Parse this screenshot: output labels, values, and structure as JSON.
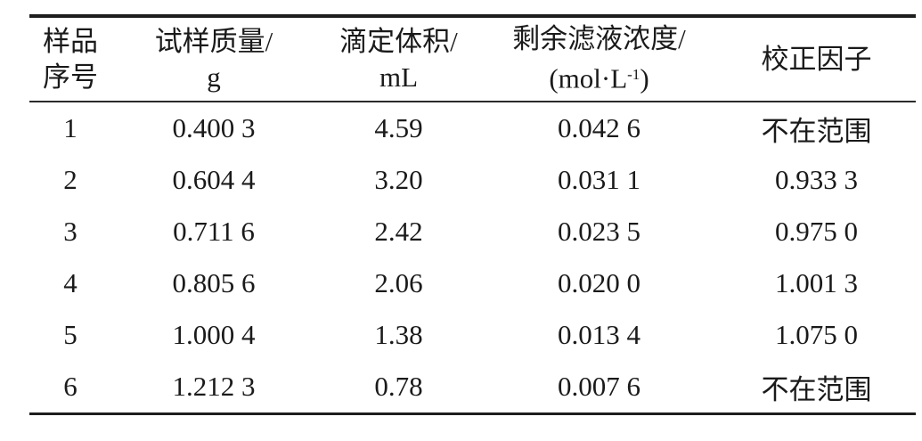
{
  "table": {
    "headers": [
      {
        "line1": "样品",
        "line2": "序号"
      },
      {
        "line1": "试样质量/",
        "line2": "g"
      },
      {
        "line1": "滴定体积/",
        "line2": "mL"
      },
      {
        "line1": "剩余滤液浓度/",
        "line2_pre": "(mol·L",
        "line2_sup": "-1",
        "line2_post": ")"
      },
      {
        "line1": "校正因子"
      }
    ],
    "rows": [
      [
        "1",
        "0.400 3",
        "4.59",
        "0.042 6",
        "不在范围"
      ],
      [
        "2",
        "0.604 4",
        "3.20",
        "0.031 1",
        "0.933 3"
      ],
      [
        "3",
        "0.711 6",
        "2.42",
        "0.023 5",
        "0.975 0"
      ],
      [
        "4",
        "0.805 6",
        "2.06",
        "0.020 0",
        "1.001 3"
      ],
      [
        "5",
        "1.000 4",
        "1.38",
        "0.013 4",
        "1.075 0"
      ],
      [
        "6",
        "1.212 3",
        "0.78",
        "0.007 6",
        "不在范围"
      ]
    ]
  },
  "colors": {
    "text": "#1a1a1a",
    "rule": "#1e1e1e",
    "background": "#ffffff"
  }
}
